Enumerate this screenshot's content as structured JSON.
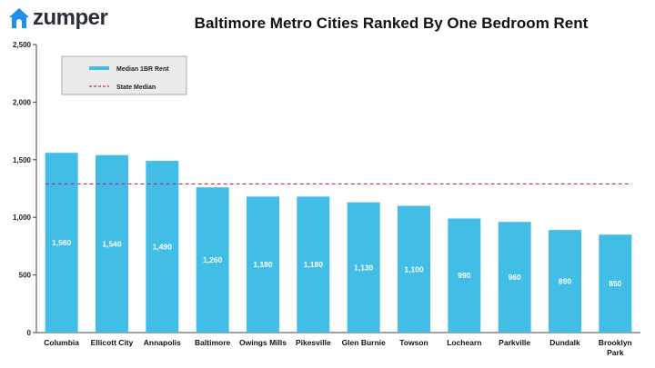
{
  "brand": {
    "name": "zumper",
    "icon": "house-icon",
    "color": "#1f8fe8"
  },
  "chart_data": {
    "type": "bar",
    "title": "Baltimore Metro Cities Ranked By One Bedroom Rent",
    "categories": [
      "Columbia",
      "Ellicott City",
      "Annapolis",
      "Baltimore",
      "Owings Mills",
      "Pikesville",
      "Glen Burnie",
      "Towson",
      "Lochearn",
      "Parkville",
      "Dundalk",
      "Brooklyn Park"
    ],
    "series": [
      {
        "name": "Median 1BR Rent",
        "values": [
          1560,
          1540,
          1490,
          1260,
          1180,
          1180,
          1130,
          1100,
          990,
          960,
          890,
          850
        ],
        "color": "#41bde6"
      }
    ],
    "data_labels": [
      "1,560",
      "1,540",
      "1,490",
      "1,260",
      "1,180",
      "1,180",
      "1,130",
      "1,100",
      "990",
      "960",
      "890",
      "850"
    ],
    "reference_line": {
      "name": "State Median",
      "value": 1290,
      "style": "dashed",
      "color": "#b0307a"
    },
    "ylim": [
      0,
      2500
    ],
    "yticks": [
      0,
      500,
      1000,
      1500,
      2000,
      2500
    ],
    "ytick_labels": [
      "0",
      "500",
      "1,000",
      "1,500",
      "2,000",
      "2,500"
    ],
    "xlabel": "",
    "ylabel": "",
    "grid": false,
    "legend_position": "top-left"
  }
}
